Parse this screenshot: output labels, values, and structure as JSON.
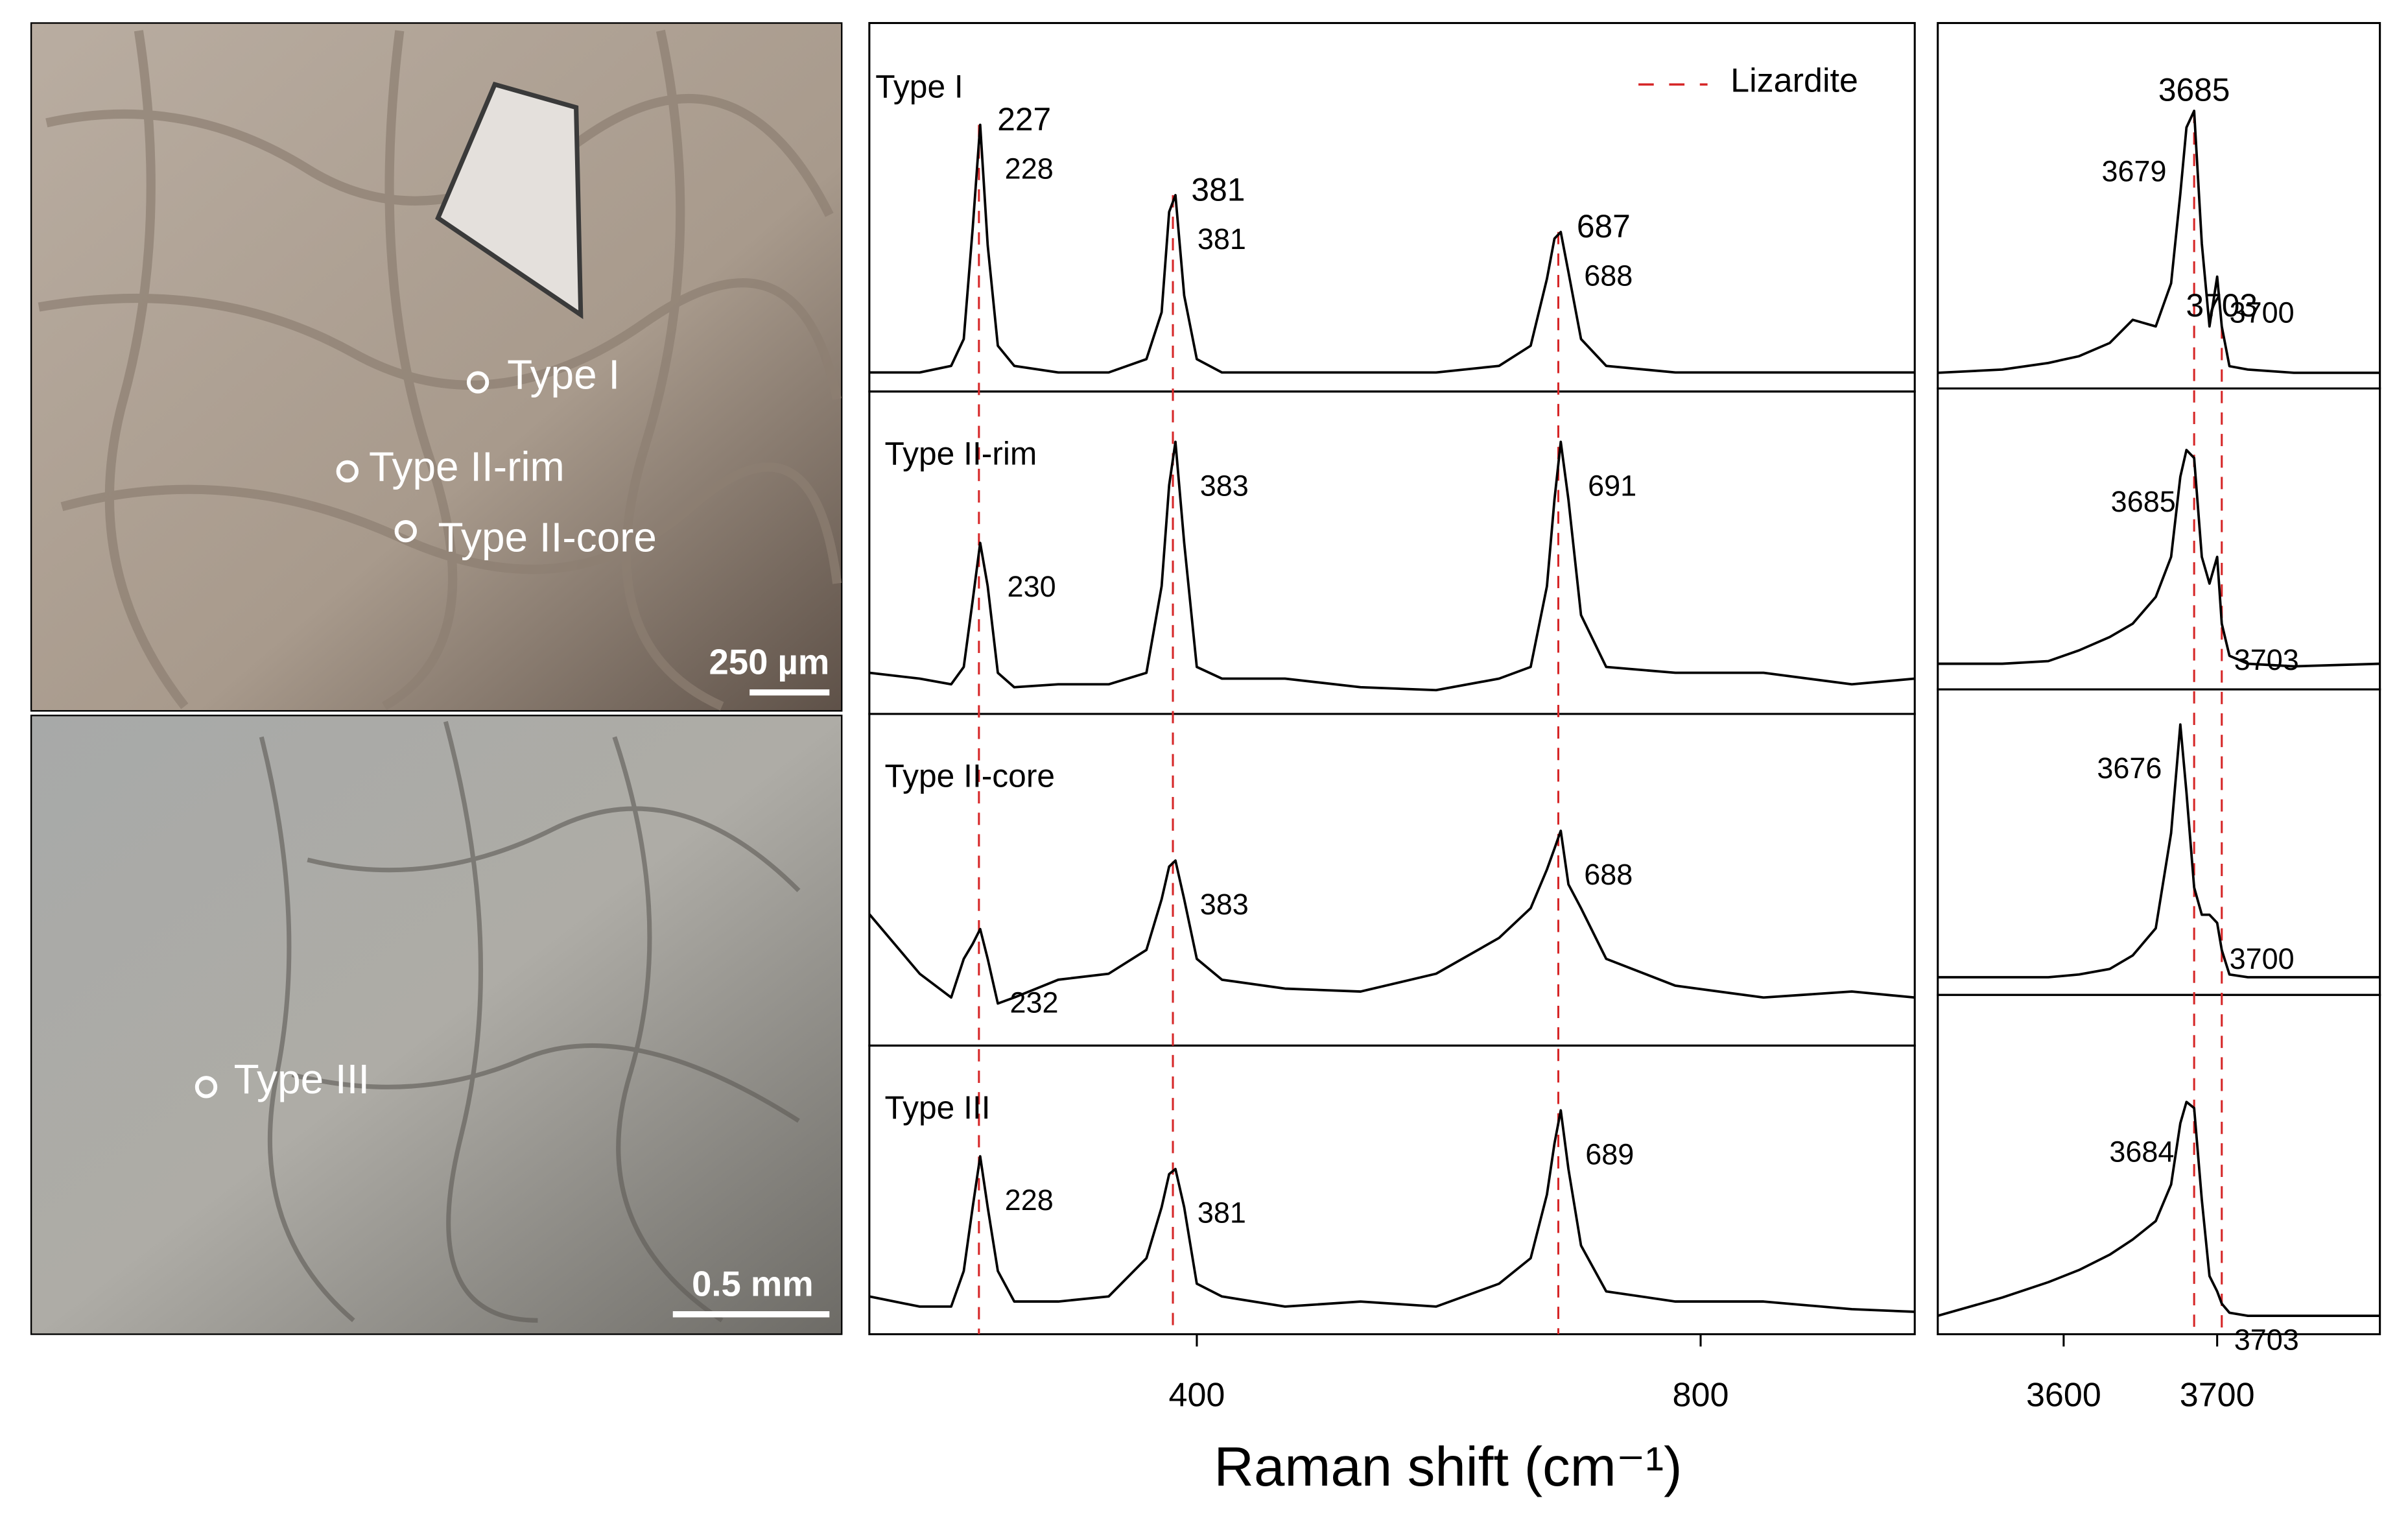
{
  "images": [
    {
      "labels": [
        "Type I",
        "Type II-rim",
        "Type II-core"
      ],
      "scale_bar": "250 µm"
    },
    {
      "labels": [
        "Type III"
      ],
      "scale_bar": "0.5 mm"
    }
  ],
  "chart_data": [
    {
      "type": "line",
      "xlabel": "Raman shift (cm⁻¹)",
      "xlim": [
        140,
        970
      ],
      "xticks": [
        400,
        800
      ],
      "ylim": [
        0,
        1
      ],
      "reference": {
        "name": "Lizardite",
        "color": "#d62728",
        "positions": [
          227,
          381,
          687
        ]
      },
      "x": [
        140,
        180,
        205,
        215,
        222,
        228,
        234,
        242,
        255,
        290,
        330,
        360,
        372,
        378,
        383,
        390,
        400,
        420,
        470,
        530,
        590,
        640,
        665,
        678,
        684,
        689,
        695,
        705,
        725,
        780,
        850,
        920,
        970
      ],
      "panels": [
        {
          "name": "Type I",
          "peaks": [
            228,
            381,
            688
          ],
          "values": [
            0.02,
            0.02,
            0.04,
            0.12,
            0.45,
            0.76,
            0.4,
            0.1,
            0.04,
            0.02,
            0.02,
            0.06,
            0.2,
            0.5,
            0.55,
            0.25,
            0.06,
            0.02,
            0.02,
            0.02,
            0.02,
            0.04,
            0.1,
            0.3,
            0.42,
            0.44,
            0.32,
            0.12,
            0.04,
            0.02,
            0.02,
            0.02,
            0.02
          ]
        },
        {
          "name": "Type II-rim",
          "peaks": [
            230,
            383,
            691
          ],
          "values": [
            0.1,
            0.08,
            0.06,
            0.12,
            0.35,
            0.55,
            0.4,
            0.1,
            0.05,
            0.06,
            0.06,
            0.1,
            0.4,
            0.75,
            0.9,
            0.55,
            0.12,
            0.08,
            0.08,
            0.05,
            0.04,
            0.08,
            0.12,
            0.4,
            0.7,
            0.9,
            0.7,
            0.3,
            0.12,
            0.1,
            0.1,
            0.06,
            0.08
          ]
        },
        {
          "name": "Type II-core",
          "peaks": [
            232,
            383,
            688
          ],
          "values": [
            0.4,
            0.2,
            0.12,
            0.25,
            0.3,
            0.35,
            0.25,
            0.1,
            0.12,
            0.18,
            0.2,
            0.28,
            0.45,
            0.56,
            0.58,
            0.45,
            0.25,
            0.18,
            0.15,
            0.14,
            0.2,
            0.32,
            0.42,
            0.55,
            0.62,
            0.68,
            0.5,
            0.42,
            0.25,
            0.16,
            0.12,
            0.14,
            0.12
          ]
        },
        {
          "name": "Type III",
          "peaks": [
            228,
            381,
            689
          ],
          "values": [
            0.1,
            0.06,
            0.06,
            0.2,
            0.45,
            0.65,
            0.45,
            0.2,
            0.08,
            0.08,
            0.1,
            0.25,
            0.45,
            0.58,
            0.6,
            0.45,
            0.15,
            0.1,
            0.06,
            0.08,
            0.06,
            0.15,
            0.25,
            0.5,
            0.7,
            0.83,
            0.6,
            0.3,
            0.12,
            0.08,
            0.08,
            0.05,
            0.04
          ]
        }
      ]
    },
    {
      "type": "line",
      "xlim": [
        3518,
        3806
      ],
      "xticks": [
        3600,
        3700
      ],
      "ylim": [
        0,
        1
      ],
      "reference": {
        "color": "#d62728",
        "positions": [
          3685,
          3703
        ]
      },
      "x": [
        3518,
        3560,
        3590,
        3610,
        3630,
        3645,
        3660,
        3670,
        3676,
        3680,
        3685,
        3690,
        3695,
        3700,
        3703,
        3708,
        3720,
        3750,
        3806
      ],
      "panels": [
        {
          "peaks": [
            3679,
            3700
          ],
          "values": [
            0.01,
            0.02,
            0.04,
            0.06,
            0.1,
            0.17,
            0.15,
            0.28,
            0.55,
            0.75,
            0.8,
            0.4,
            0.15,
            0.3,
            0.15,
            0.03,
            0.02,
            0.01,
            0.01
          ]
        },
        {
          "peaks": [
            3685,
            3703
          ],
          "values": [
            0.05,
            0.05,
            0.06,
            0.1,
            0.15,
            0.2,
            0.3,
            0.45,
            0.75,
            0.85,
            0.82,
            0.45,
            0.35,
            0.45,
            0.2,
            0.08,
            0.05,
            0.04,
            0.05
          ]
        },
        {
          "peaks": [
            3676,
            3700
          ],
          "values": [
            0.02,
            0.02,
            0.02,
            0.03,
            0.05,
            0.1,
            0.2,
            0.55,
            0.95,
            0.7,
            0.35,
            0.25,
            0.25,
            0.22,
            0.12,
            0.03,
            0.02,
            0.02,
            0.02
          ]
        },
        {
          "peaks": [
            3684,
            3703
          ],
          "values": [
            0.02,
            0.08,
            0.13,
            0.17,
            0.22,
            0.27,
            0.33,
            0.45,
            0.65,
            0.72,
            0.7,
            0.4,
            0.15,
            0.1,
            0.06,
            0.03,
            0.02,
            0.02,
            0.02
          ]
        }
      ]
    }
  ]
}
